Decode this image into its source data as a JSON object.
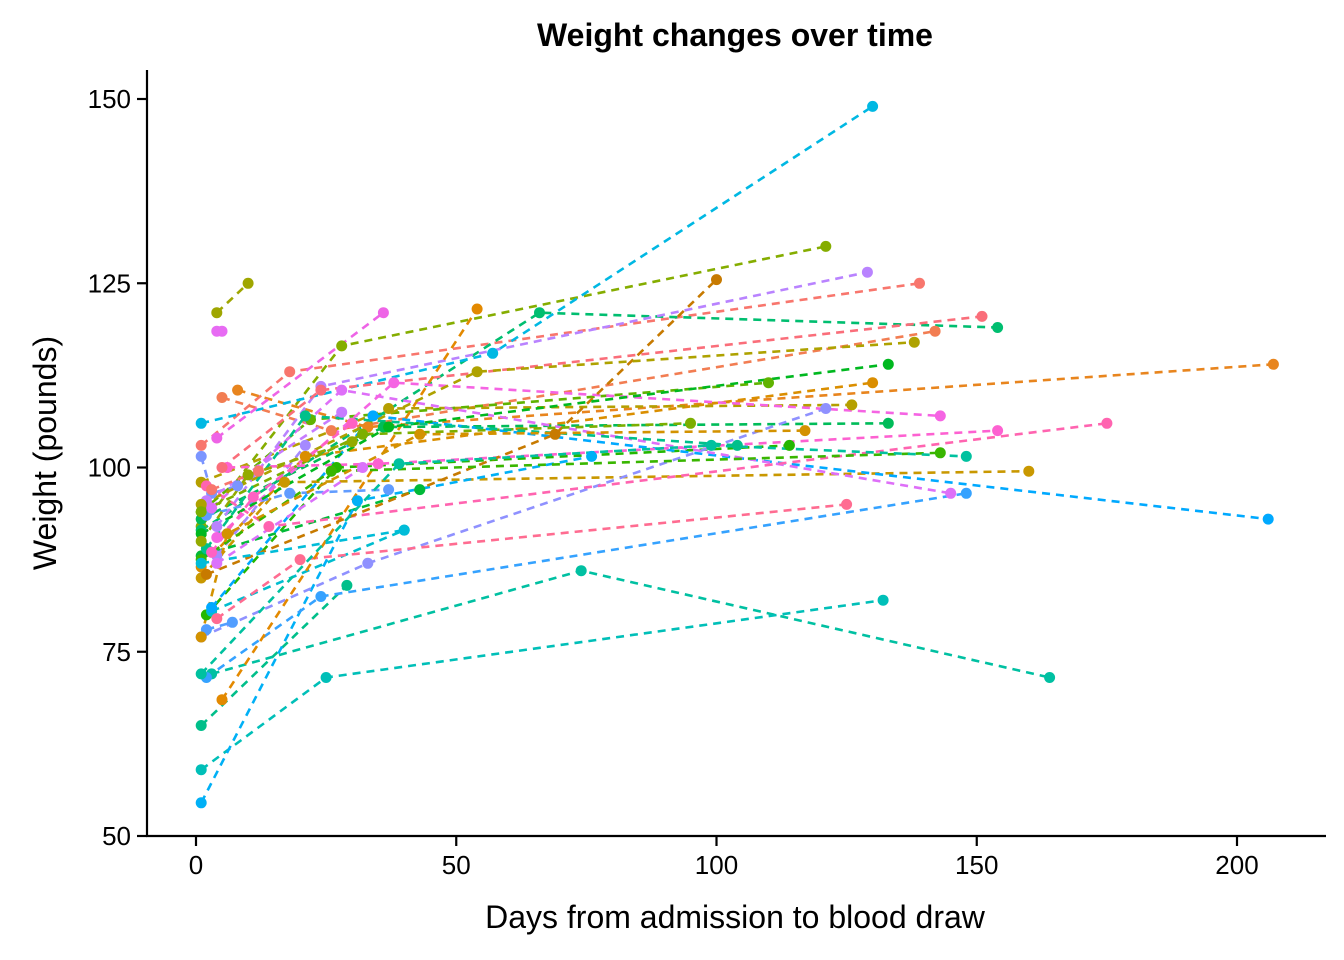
{
  "chart_data": {
    "type": "line",
    "title": "Weight changes over time",
    "xlabel": "Days from admission to blood draw",
    "ylabel": "Weight (pounds)",
    "xlim": [
      -9,
      215
    ],
    "ylim": [
      50,
      154
    ],
    "xticks": [
      0,
      50,
      100,
      150,
      200
    ],
    "yticks": [
      50,
      75,
      100,
      125,
      150
    ],
    "grid": false,
    "legend": "none",
    "line_style": "dashed",
    "series": [
      {
        "color": "#F8766D",
        "points": [
          [
            1,
            103
          ],
          [
            18,
            113
          ],
          [
            139,
            125
          ]
        ]
      },
      {
        "color": "#F27D52",
        "points": [
          [
            5,
            109.5
          ],
          [
            26,
            105
          ],
          [
            142,
            118.5
          ]
        ]
      },
      {
        "color": "#E8851E",
        "points": [
          [
            8,
            110.5
          ],
          [
            33,
            105.5
          ],
          [
            207,
            114
          ]
        ]
      },
      {
        "color": "#DA8E00",
        "points": [
          [
            1,
            86.5
          ],
          [
            21,
            101.5
          ],
          [
            130,
            111.5
          ]
        ]
      },
      {
        "color": "#C99800",
        "points": [
          [
            1,
            85
          ],
          [
            17,
            98
          ],
          [
            160,
            99.5
          ]
        ]
      },
      {
        "color": "#B59F00",
        "points": [
          [
            1,
            98
          ],
          [
            37,
            108
          ],
          [
            126,
            108.5
          ]
        ]
      },
      {
        "color": "#9FA600",
        "points": [
          [
            4,
            121
          ],
          [
            10,
            125
          ]
        ]
      },
      {
        "color": "#85AD00",
        "points": [
          [
            1,
            92
          ],
          [
            28,
            116.5
          ],
          [
            121,
            130
          ]
        ]
      },
      {
        "color": "#60B300",
        "points": [
          [
            1,
            94
          ],
          [
            22,
            106.5
          ],
          [
            110,
            111.5
          ]
        ]
      },
      {
        "color": "#24B700",
        "points": [
          [
            2,
            80
          ],
          [
            27,
            100
          ],
          [
            114,
            103
          ]
        ]
      },
      {
        "color": "#00BA38",
        "points": [
          [
            1,
            88
          ],
          [
            43,
            97
          ]
        ]
      },
      {
        "color": "#00BC59",
        "points": [
          [
            1,
            93
          ],
          [
            36,
            105.5
          ],
          [
            133,
            106
          ]
        ]
      },
      {
        "color": "#00BE70",
        "points": [
          [
            1,
            91.5
          ],
          [
            66,
            121
          ],
          [
            154,
            119
          ]
        ]
      },
      {
        "color": "#00BF8A",
        "points": [
          [
            1,
            65
          ],
          [
            29,
            84
          ]
        ]
      },
      {
        "color": "#00C0A2",
        "points": [
          [
            3,
            72
          ],
          [
            74,
            86
          ],
          [
            164,
            71.5
          ]
        ]
      },
      {
        "color": "#00BFB8",
        "points": [
          [
            1,
            59
          ],
          [
            25,
            71.5
          ],
          [
            132,
            82
          ]
        ]
      },
      {
        "color": "#00BDCF",
        "points": [
          [
            3,
            80.5
          ],
          [
            40,
            91.5
          ]
        ]
      },
      {
        "color": "#00B8E3",
        "points": [
          [
            1,
            106
          ],
          [
            57,
            115.5
          ],
          [
            130,
            149
          ]
        ]
      },
      {
        "color": "#00B0F6",
        "points": [
          [
            1,
            54.5
          ],
          [
            31,
            95.5
          ],
          [
            76,
            101.5
          ]
        ]
      },
      {
        "color": "#35A2FF",
        "points": [
          [
            2,
            71.5
          ],
          [
            24,
            82.5
          ],
          [
            148,
            96.5
          ]
        ]
      },
      {
        "color": "#00A9FF",
        "points": [
          [
            3,
            81
          ],
          [
            34,
            107
          ],
          [
            206,
            93
          ]
        ]
      },
      {
        "color": "#619CFF",
        "points": [
          [
            2,
            93.5
          ],
          [
            18,
            96.5
          ],
          [
            37,
            97
          ]
        ]
      },
      {
        "color": "#7B95FF",
        "points": [
          [
            1,
            101.5
          ],
          [
            3,
            96.5
          ],
          [
            8,
            97.5
          ]
        ]
      },
      {
        "color": "#8F91FF",
        "points": [
          [
            1,
            77
          ],
          [
            33,
            87
          ],
          [
            121,
            108
          ]
        ]
      },
      {
        "color": "#A58AFF",
        "points": [
          [
            4,
            88
          ],
          [
            21,
            103
          ]
        ]
      },
      {
        "color": "#B983FF",
        "points": [
          [
            4,
            92
          ],
          [
            24,
            111
          ],
          [
            129,
            126.5
          ]
        ]
      },
      {
        "color": "#C77CFF",
        "points": [
          [
            2,
            95.5
          ],
          [
            28,
            107.5
          ]
        ]
      },
      {
        "color": "#DE6FF8",
        "points": [
          [
            3,
            94.5
          ],
          [
            28,
            110.5
          ],
          [
            145,
            96.5
          ]
        ]
      },
      {
        "color": "#E76BF3",
        "points": [
          [
            4,
            118.5
          ],
          [
            5,
            118.5
          ]
        ]
      },
      {
        "color": "#EE64E6",
        "points": [
          [
            4,
            104
          ],
          [
            36,
            121
          ]
        ]
      },
      {
        "color": "#F564E3",
        "points": [
          [
            4,
            90.5
          ],
          [
            38,
            111.5
          ],
          [
            143,
            107
          ]
        ]
      },
      {
        "color": "#FD61D1",
        "points": [
          [
            6,
            100
          ],
          [
            35,
            100.5
          ],
          [
            154,
            105
          ]
        ]
      },
      {
        "color": "#FF64B0",
        "points": [
          [
            2,
            97.5
          ],
          [
            14,
            92
          ],
          [
            175,
            106
          ]
        ]
      },
      {
        "color": "#FF6C91",
        "points": [
          [
            4,
            79.5
          ],
          [
            20,
            87.5
          ],
          [
            125,
            95
          ]
        ]
      },
      {
        "color": "#FA6E7A",
        "points": [
          [
            5,
            100
          ],
          [
            24,
            110.5
          ],
          [
            151,
            120.5
          ]
        ]
      },
      {
        "color": "#E38900",
        "points": [
          [
            5,
            68.5
          ],
          [
            54,
            121.5
          ]
        ]
      },
      {
        "color": "#C77A00",
        "points": [
          [
            2,
            85.5
          ],
          [
            69,
            104.5
          ],
          [
            100,
            125.5
          ]
        ]
      },
      {
        "color": "#AEA200",
        "points": [
          [
            1,
            95
          ],
          [
            54,
            113
          ],
          [
            138,
            117
          ]
        ]
      },
      {
        "color": "#7CAE00",
        "points": [
          [
            1,
            94
          ],
          [
            32,
            104.5
          ],
          [
            95,
            106
          ]
        ]
      },
      {
        "color": "#39B600",
        "points": [
          [
            1,
            87.5
          ],
          [
            26,
            99.5
          ],
          [
            143,
            102
          ]
        ]
      },
      {
        "color": "#00B81F",
        "points": [
          [
            1,
            91
          ],
          [
            37,
            105.5
          ],
          [
            133,
            114
          ]
        ]
      },
      {
        "color": "#00C19F",
        "points": [
          [
            1,
            72
          ],
          [
            39,
            100.5
          ],
          [
            99,
            103
          ],
          [
            148,
            101.5
          ]
        ]
      },
      {
        "color": "#00C08B",
        "points": [
          [
            2,
            89
          ],
          [
            21,
            107
          ],
          [
            104,
            103
          ]
        ]
      },
      {
        "color": "#00BCD8",
        "points": [
          [
            1,
            87
          ],
          [
            40,
            91.5
          ]
        ]
      },
      {
        "color": "#529EFF",
        "points": [
          [
            2,
            78
          ],
          [
            7,
            79
          ]
        ]
      },
      {
        "color": "#DB72FB",
        "points": [
          [
            4,
            87
          ],
          [
            32,
            100
          ]
        ]
      },
      {
        "color": "#FF61C3",
        "points": [
          [
            3,
            88.5
          ],
          [
            11,
            96
          ],
          [
            30,
            106
          ]
        ]
      },
      {
        "color": "#F8766D",
        "points": [
          [
            3,
            97
          ],
          [
            12,
            99.5
          ]
        ]
      },
      {
        "color": "#D39200",
        "points": [
          [
            1,
            77
          ],
          [
            6,
            91
          ],
          [
            43,
            104.5
          ],
          [
            117,
            105
          ]
        ]
      },
      {
        "color": "#93AA00",
        "points": [
          [
            1,
            90
          ],
          [
            10,
            99
          ],
          [
            30,
            103.5
          ]
        ]
      }
    ]
  }
}
